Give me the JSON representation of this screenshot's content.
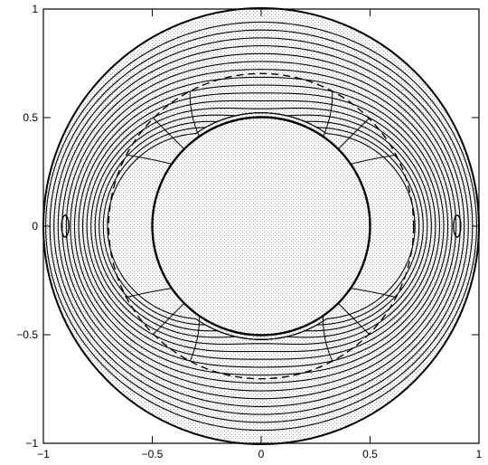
{
  "chart_data": {
    "type": "contour",
    "title": "",
    "xlabel": "",
    "ylabel": "",
    "xlim": [
      -1,
      1
    ],
    "ylim": [
      -1,
      1
    ],
    "x_ticks": [
      -1,
      -0.5,
      0,
      0.5,
      1
    ],
    "y_ticks": [
      -1,
      -0.5,
      0,
      0.5,
      1
    ],
    "x_tick_labels": [
      "−1",
      "−0.5",
      "0",
      "0.5",
      "1"
    ],
    "y_tick_labels": [
      "−1",
      "−0.5",
      "0",
      "0.5",
      "1"
    ],
    "outer_boundary_radius": 1.0,
    "inner_boundary_radius": 0.5,
    "dashed_circle_radius": 0.7,
    "shaded_regions": "stippled",
    "grid": false,
    "legend": "none"
  }
}
